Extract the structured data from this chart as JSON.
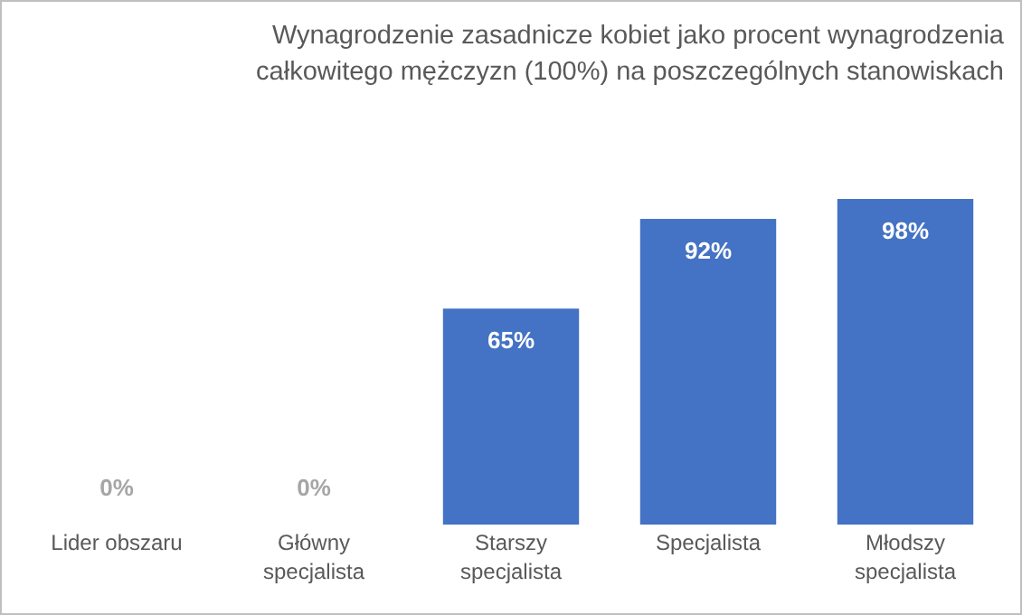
{
  "chart_data": {
    "type": "bar",
    "title": "Wynagrodzenie zasadnicze kobiet jako procent wynagrodzenia\ncałkowitego mężczyzn (100%) na poszczególnych stanowiskach",
    "categories": [
      "Lider obszaru",
      "Główny specjalista",
      "Starszy specjalista",
      "Specjalista",
      "Młodszy specjalista"
    ],
    "values": [
      0,
      0,
      65,
      92,
      98
    ],
    "color": "#4472c4",
    "data_labels": true,
    "value_labels": [
      "0%",
      "0%",
      "65%",
      "92%",
      "98%"
    ]
  }
}
